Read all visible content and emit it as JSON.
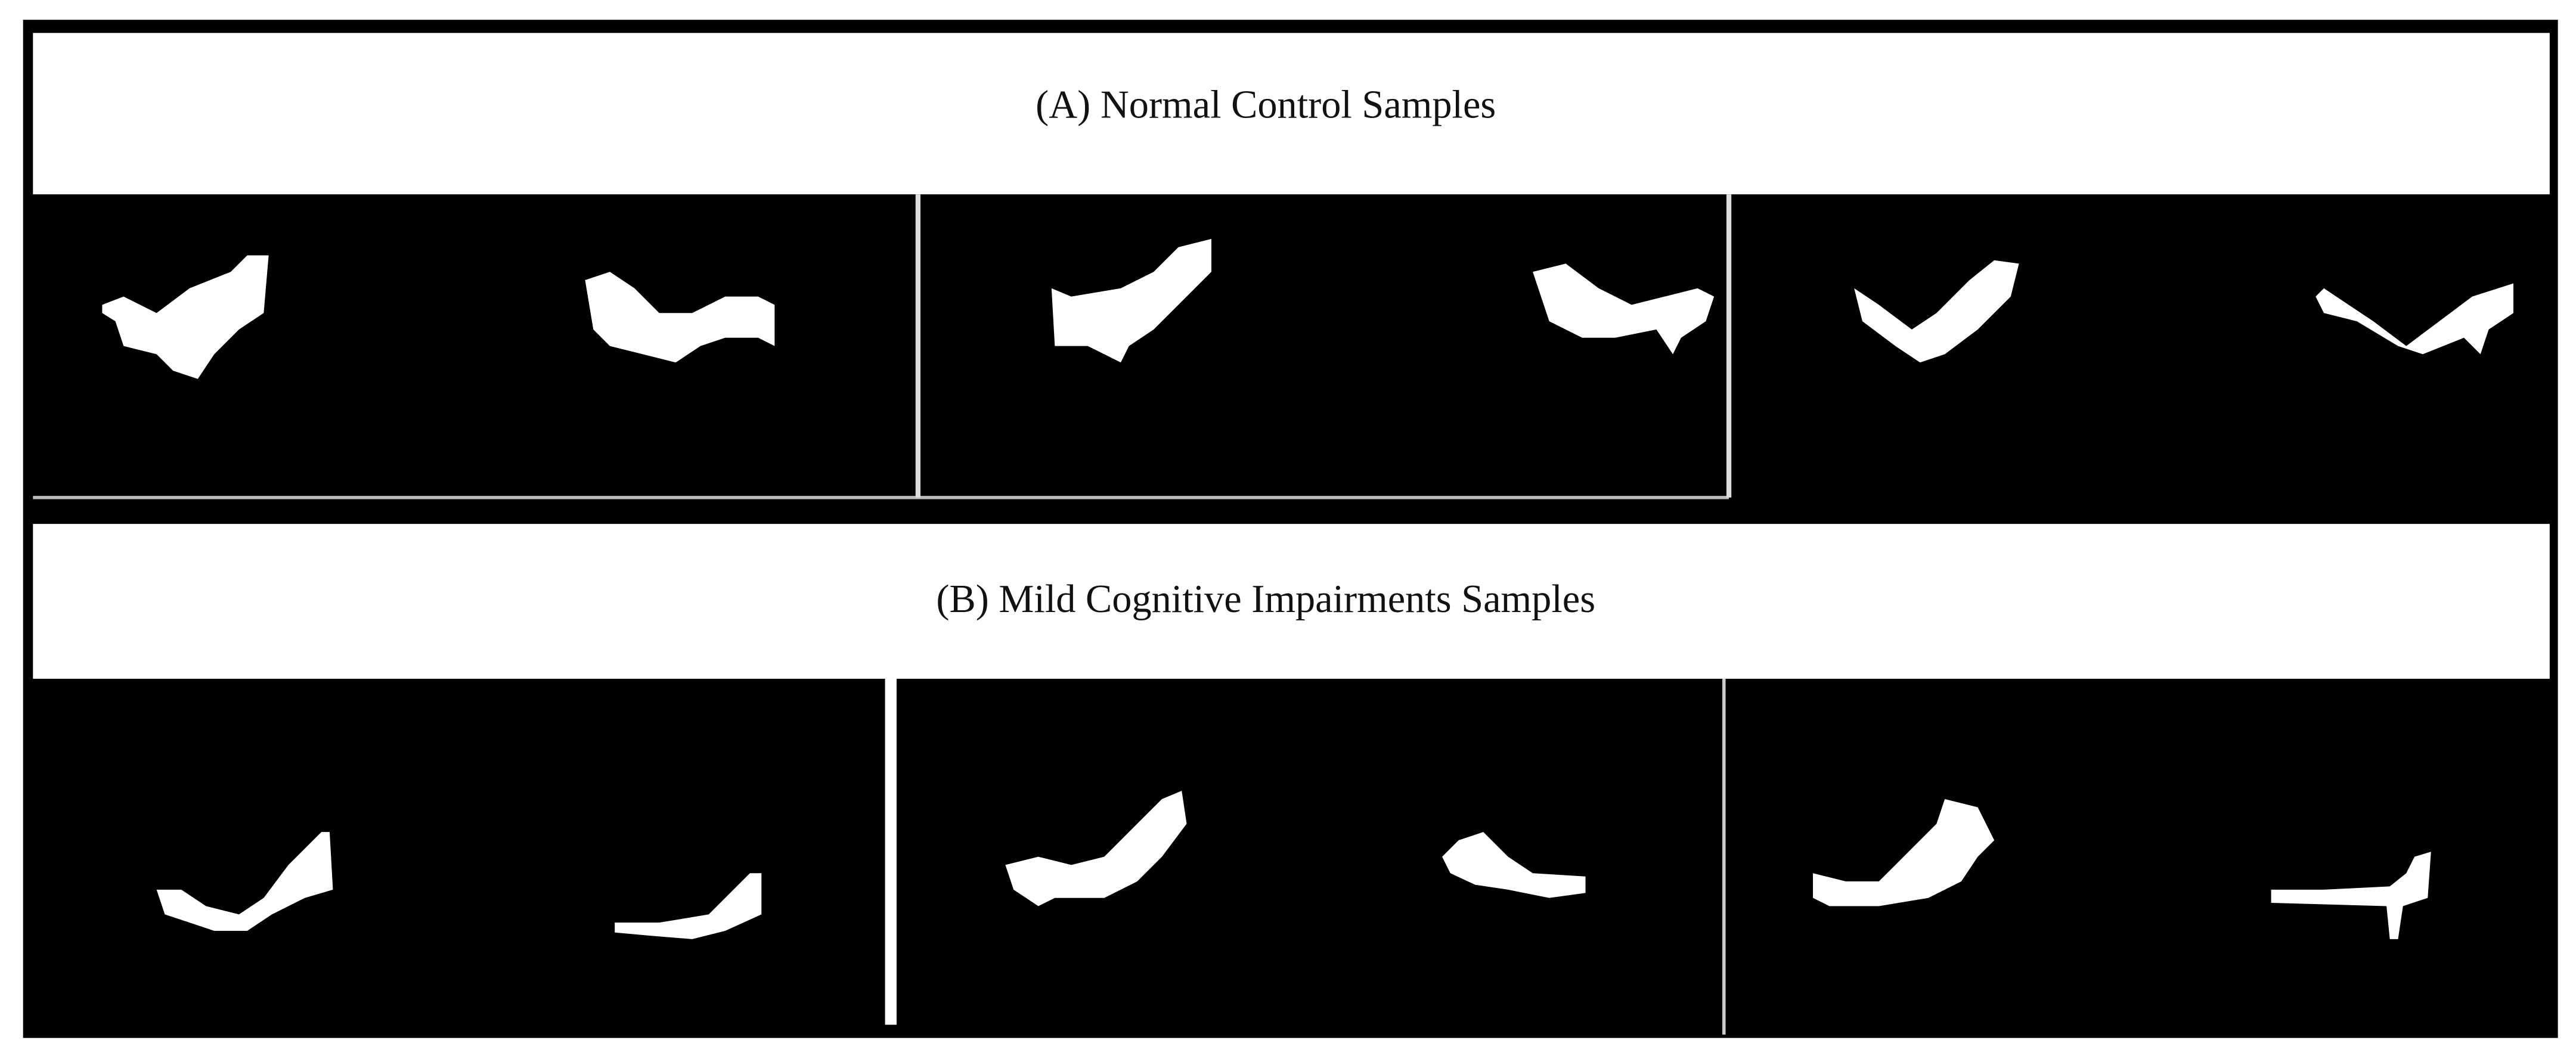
{
  "panels": [
    {
      "title": "(A) Normal Control Samples"
    },
    {
      "title": "(B) Mild Cognitive Impairments Samples"
    }
  ]
}
